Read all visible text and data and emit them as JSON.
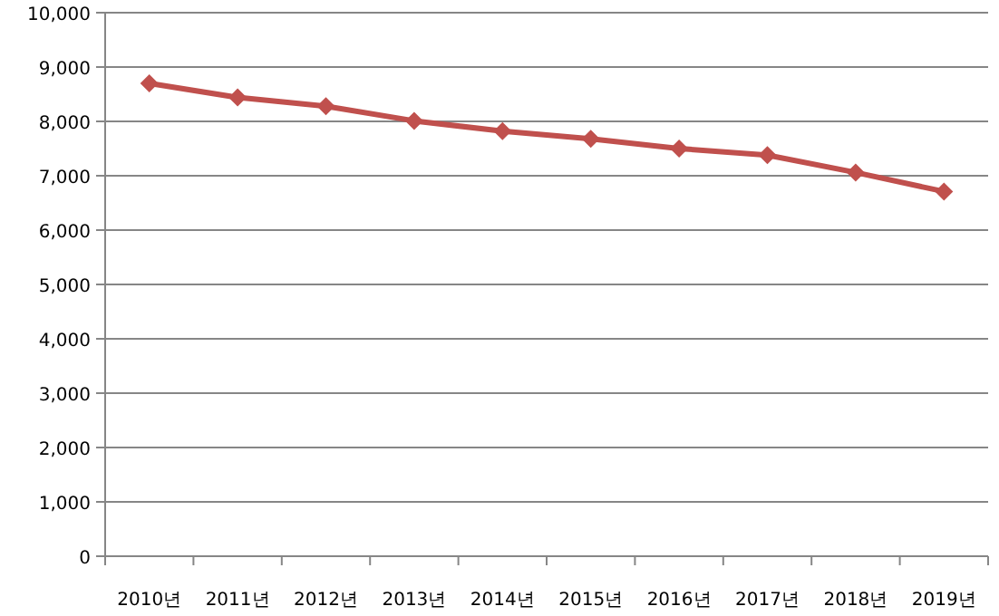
{
  "chart_data": {
    "type": "line",
    "categories": [
      "2010년",
      "2011년",
      "2012년",
      "2013년",
      "2014년",
      "2015년",
      "2016년",
      "2017년",
      "2018년",
      "2019년"
    ],
    "series": [
      {
        "color": "#c0504d",
        "values": [
          8700,
          8440,
          8280,
          8010,
          7820,
          7680,
          7500,
          7380,
          7060,
          6710
        ]
      }
    ],
    "ylim": [
      0,
      10000
    ],
    "yticks": [
      0,
      {
        "value": 1000,
        "label": "1,000"
      },
      {
        "value": 2000,
        "label": "2,000"
      },
      {
        "value": 3000,
        "label": "3,000"
      },
      {
        "value": 4000,
        "label": "4,000"
      },
      {
        "value": 5000,
        "label": "5,000"
      },
      {
        "value": 6000,
        "label": "6,000"
      },
      {
        "value": 7000,
        "label": "7,000"
      },
      {
        "value": 8000,
        "label": "8,000"
      },
      {
        "value": 9000,
        "label": "9,000"
      },
      {
        "value": 10000,
        "label": "10,000"
      }
    ],
    "grid": "y",
    "marker": "diamond",
    "line_style": "solid"
  }
}
